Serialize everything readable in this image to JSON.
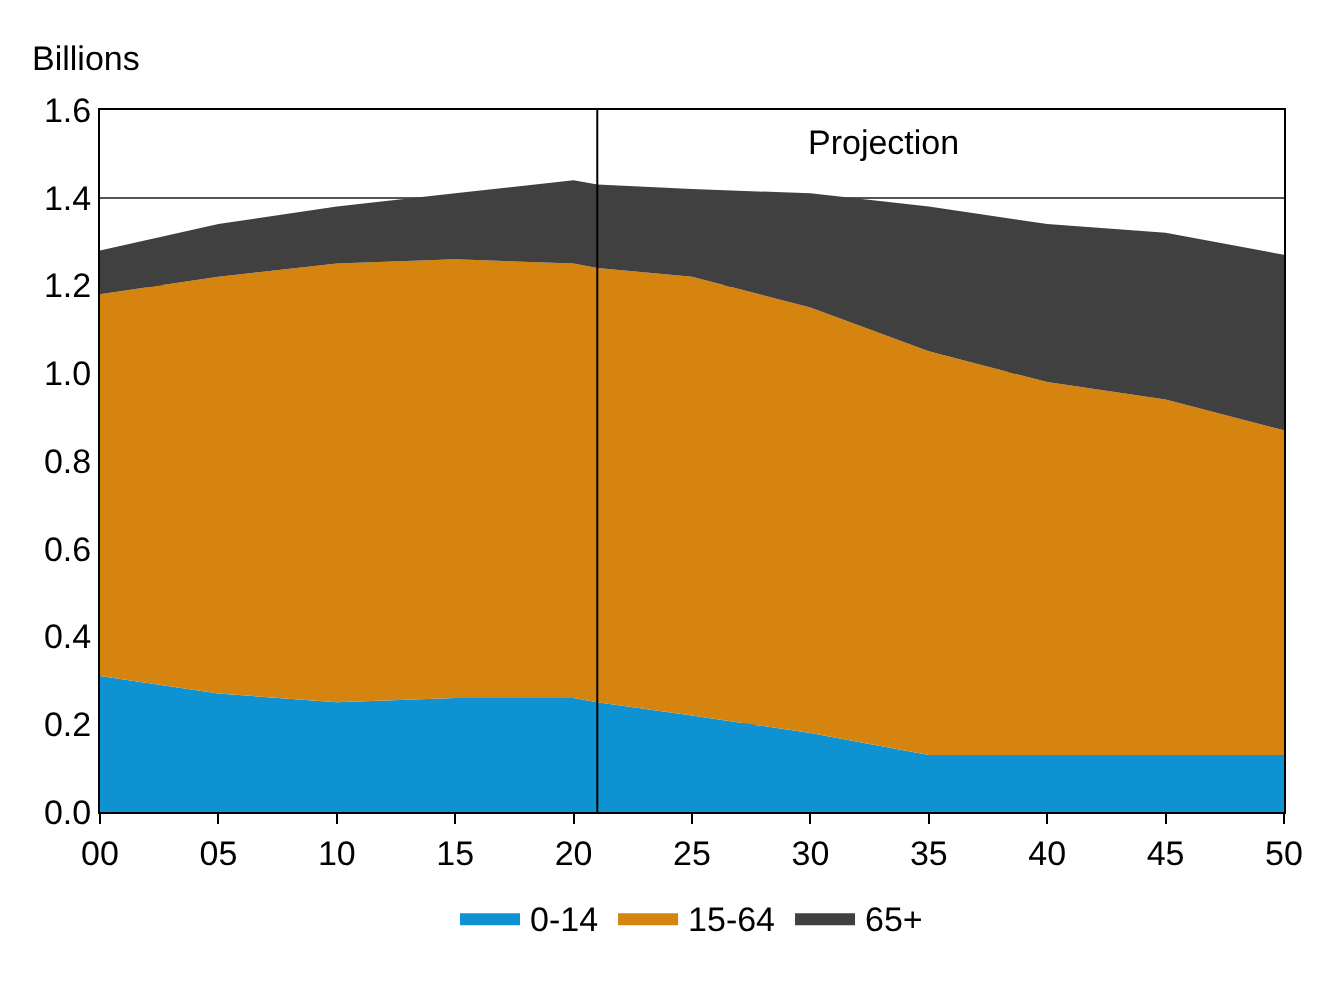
{
  "chart_data": {
    "type": "area",
    "stacked": true,
    "ylabel": "Billions",
    "x": [
      2000,
      2005,
      2010,
      2015,
      2020,
      2021,
      2025,
      2030,
      2035,
      2040,
      2045,
      2050
    ],
    "series": [
      {
        "name": "0-14",
        "color": "#0f92d2",
        "values": [
          0.31,
          0.27,
          0.25,
          0.26,
          0.26,
          0.25,
          0.22,
          0.18,
          0.13,
          0.13,
          0.13,
          0.13
        ]
      },
      {
        "name": "15-64",
        "color": "#d4840f",
        "values": [
          0.87,
          0.95,
          1.0,
          1.0,
          0.99,
          0.99,
          1.0,
          0.97,
          0.92,
          0.85,
          0.81,
          0.74
        ]
      },
      {
        "name": "65+",
        "color": "#404040",
        "values": [
          0.1,
          0.12,
          0.13,
          0.15,
          0.19,
          0.19,
          0.2,
          0.26,
          0.33,
          0.36,
          0.38,
          0.4
        ]
      }
    ],
    "xlim": [
      2000,
      2050
    ],
    "xticks": [
      {
        "value": 2000,
        "label": "00"
      },
      {
        "value": 2005,
        "label": "05"
      },
      {
        "value": 2010,
        "label": "10"
      },
      {
        "value": 2015,
        "label": "15"
      },
      {
        "value": 2020,
        "label": "20"
      },
      {
        "value": 2025,
        "label": "25"
      },
      {
        "value": 2030,
        "label": "30"
      },
      {
        "value": 2035,
        "label": "35"
      },
      {
        "value": 2040,
        "label": "40"
      },
      {
        "value": 2045,
        "label": "45"
      },
      {
        "value": 2050,
        "label": "50"
      }
    ],
    "ylim": [
      0,
      1.6
    ],
    "yticks": [
      {
        "value": 0,
        "label": "0.0"
      },
      {
        "value": 0.2,
        "label": "0.2"
      },
      {
        "value": 0.4,
        "label": "0.4"
      },
      {
        "value": 0.6,
        "label": "0.6"
      },
      {
        "value": 0.8,
        "label": "0.8"
      },
      {
        "value": 1,
        "label": "1.0"
      },
      {
        "value": 1.2,
        "label": "1.2"
      },
      {
        "value": 1.4,
        "label": "1.4"
      },
      {
        "value": 1.6,
        "label": "1.6"
      }
    ],
    "grid": "y",
    "legend": "bottom",
    "marker": "none",
    "ref_lines": [
      {
        "axis": "x",
        "value": 2021,
        "color": "#000000"
      }
    ],
    "annotations": [
      "Projection"
    ]
  }
}
